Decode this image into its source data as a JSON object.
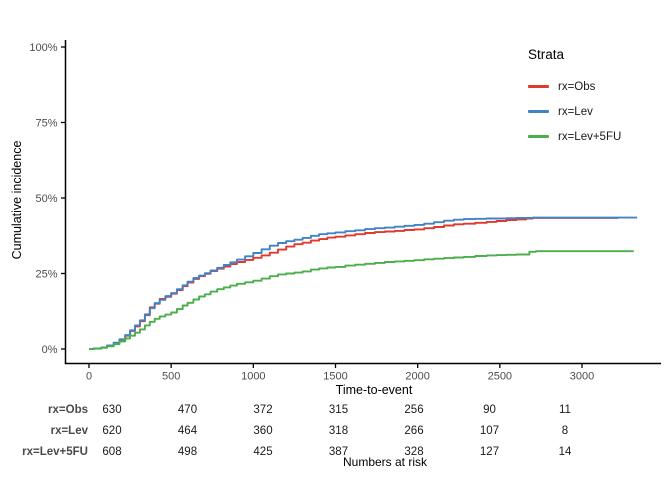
{
  "chart_data": {
    "type": "line",
    "subtype": "cumulative-incidence-step-curves",
    "title": "",
    "xlabel": "Time-to-event",
    "ylabel": "Cumulative incidence",
    "xlim": [
      0,
      3480
    ],
    "ylim": [
      0,
      100
    ],
    "grid": "off",
    "x_ticks": [
      0,
      500,
      1000,
      1500,
      2000,
      2500,
      3000
    ],
    "y_ticks": [
      {
        "value": 0,
        "label": "0%"
      },
      {
        "value": 25,
        "label": "25%"
      },
      {
        "value": 50,
        "label": "50%"
      },
      {
        "value": 75,
        "label": "75%"
      },
      {
        "value": 100,
        "label": "100%"
      }
    ],
    "legend": {
      "title": "Strata",
      "position": "top-right",
      "entries": [
        {
          "label": "rx=Obs",
          "color": "#E2382D"
        },
        {
          "label": "rx=Lev",
          "color": "#4183C4"
        },
        {
          "label": "rx=Lev+5FU",
          "color": "#4CAE4C"
        }
      ]
    },
    "series": [
      {
        "name": "rx=Obs",
        "color": "#E2382D",
        "points": [
          [
            0,
            0
          ],
          [
            30,
            0.2
          ],
          [
            75,
            0.5
          ],
          [
            110,
            1.1
          ],
          [
            150,
            2
          ],
          [
            185,
            3
          ],
          [
            220,
            4.4
          ],
          [
            250,
            6
          ],
          [
            280,
            7.5
          ],
          [
            310,
            9.2
          ],
          [
            340,
            11.2
          ],
          [
            370,
            13.8
          ],
          [
            400,
            15
          ],
          [
            430,
            16.6
          ],
          [
            465,
            17.3
          ],
          [
            500,
            18.3
          ],
          [
            535,
            19.5
          ],
          [
            570,
            20.8
          ],
          [
            600,
            22
          ],
          [
            635,
            23.2
          ],
          [
            670,
            24.1
          ],
          [
            705,
            24.9
          ],
          [
            740,
            25.8
          ],
          [
            780,
            26.6
          ],
          [
            820,
            27.3
          ],
          [
            860,
            28.1
          ],
          [
            900,
            28.8
          ],
          [
            950,
            29.5
          ],
          [
            1000,
            30.2
          ],
          [
            1050,
            31
          ],
          [
            1100,
            31.9
          ],
          [
            1150,
            32.9
          ],
          [
            1200,
            33.9
          ],
          [
            1250,
            34.7
          ],
          [
            1300,
            35.2
          ],
          [
            1350,
            35.9
          ],
          [
            1400,
            36.4
          ],
          [
            1450,
            36.9
          ],
          [
            1500,
            37.2
          ],
          [
            1560,
            37.6
          ],
          [
            1620,
            38
          ],
          [
            1680,
            38.4
          ],
          [
            1740,
            38.7
          ],
          [
            1800,
            38.9
          ],
          [
            1860,
            39.1
          ],
          [
            1920,
            39.4
          ],
          [
            1980,
            39.6
          ],
          [
            2040,
            40
          ],
          [
            2100,
            40.4
          ],
          [
            2160,
            40.9
          ],
          [
            2220,
            41.3
          ],
          [
            2280,
            41.5
          ],
          [
            2350,
            41.8
          ],
          [
            2420,
            42.1
          ],
          [
            2480,
            42.4
          ],
          [
            2540,
            42.7
          ],
          [
            2600,
            42.9
          ],
          [
            2660,
            43.2
          ],
          [
            2700,
            43.4
          ],
          [
            3220,
            43.4
          ]
        ]
      },
      {
        "name": "rx=Lev",
        "color": "#4183C4",
        "points": [
          [
            0,
            0
          ],
          [
            30,
            0.2
          ],
          [
            75,
            0.5
          ],
          [
            110,
            1.2
          ],
          [
            150,
            2.1
          ],
          [
            185,
            3.2
          ],
          [
            220,
            4.6
          ],
          [
            250,
            6.2
          ],
          [
            280,
            7.8
          ],
          [
            310,
            9.5
          ],
          [
            340,
            11.5
          ],
          [
            370,
            13.5
          ],
          [
            400,
            15.2
          ],
          [
            430,
            16.3
          ],
          [
            465,
            17.5
          ],
          [
            500,
            18.5
          ],
          [
            535,
            19.8
          ],
          [
            570,
            21.1
          ],
          [
            600,
            22.3
          ],
          [
            635,
            23.5
          ],
          [
            670,
            24.3
          ],
          [
            705,
            25.1
          ],
          [
            740,
            26
          ],
          [
            780,
            26.9
          ],
          [
            820,
            27.8
          ],
          [
            860,
            28.7
          ],
          [
            900,
            29.6
          ],
          [
            950,
            30.7
          ],
          [
            1000,
            31.8
          ],
          [
            1050,
            33
          ],
          [
            1100,
            34.2
          ],
          [
            1150,
            35.1
          ],
          [
            1200,
            35.7
          ],
          [
            1250,
            36.2
          ],
          [
            1300,
            36.8
          ],
          [
            1350,
            37.5
          ],
          [
            1400,
            38
          ],
          [
            1450,
            38.3
          ],
          [
            1500,
            38.6
          ],
          [
            1560,
            39
          ],
          [
            1620,
            39.3
          ],
          [
            1680,
            39.7
          ],
          [
            1740,
            40
          ],
          [
            1800,
            40.2
          ],
          [
            1860,
            40.5
          ],
          [
            1920,
            40.8
          ],
          [
            1980,
            41.1
          ],
          [
            2040,
            41.5
          ],
          [
            2100,
            42
          ],
          [
            2160,
            42.5
          ],
          [
            2220,
            42.8
          ],
          [
            2280,
            43
          ],
          [
            2350,
            43.1
          ],
          [
            2420,
            43.2
          ],
          [
            2540,
            43.3
          ],
          [
            2600,
            43.4
          ],
          [
            2700,
            43.5
          ],
          [
            3335,
            43.5
          ]
        ]
      },
      {
        "name": "rx=Lev+5FU",
        "color": "#4CAE4C",
        "points": [
          [
            0,
            0
          ],
          [
            30,
            0.1
          ],
          [
            75,
            0.4
          ],
          [
            110,
            0.9
          ],
          [
            150,
            1.6
          ],
          [
            185,
            2.5
          ],
          [
            220,
            3.5
          ],
          [
            250,
            4.4
          ],
          [
            280,
            5.4
          ],
          [
            310,
            6.5
          ],
          [
            340,
            7.8
          ],
          [
            370,
            9
          ],
          [
            400,
            10
          ],
          [
            430,
            10.8
          ],
          [
            465,
            11.4
          ],
          [
            500,
            12.1
          ],
          [
            535,
            13.2
          ],
          [
            570,
            14.4
          ],
          [
            600,
            15.3
          ],
          [
            635,
            16.4
          ],
          [
            670,
            17.4
          ],
          [
            705,
            18.1
          ],
          [
            740,
            19
          ],
          [
            780,
            19.8
          ],
          [
            820,
            20.4
          ],
          [
            860,
            21
          ],
          [
            900,
            21.6
          ],
          [
            950,
            22.1
          ],
          [
            1000,
            22.6
          ],
          [
            1050,
            23.3
          ],
          [
            1100,
            24.1
          ],
          [
            1150,
            24.7
          ],
          [
            1200,
            25
          ],
          [
            1250,
            25.3
          ],
          [
            1300,
            25.7
          ],
          [
            1350,
            26.3
          ],
          [
            1400,
            26.7
          ],
          [
            1450,
            27
          ],
          [
            1500,
            27.2
          ],
          [
            1560,
            27.6
          ],
          [
            1620,
            27.9
          ],
          [
            1680,
            28.2
          ],
          [
            1740,
            28.5
          ],
          [
            1800,
            28.8
          ],
          [
            1860,
            29
          ],
          [
            1920,
            29.2
          ],
          [
            1980,
            29.4
          ],
          [
            2040,
            29.7
          ],
          [
            2100,
            29.9
          ],
          [
            2160,
            30.1
          ],
          [
            2220,
            30.3
          ],
          [
            2280,
            30.5
          ],
          [
            2350,
            30.8
          ],
          [
            2420,
            31
          ],
          [
            2480,
            31.1
          ],
          [
            2540,
            31.2
          ],
          [
            2600,
            31.3
          ],
          [
            2680,
            32.2
          ],
          [
            2720,
            32.4
          ],
          [
            3315,
            32.4
          ]
        ]
      }
    ]
  },
  "risk_table": {
    "caption": "Numbers at risk",
    "times": [
      0,
      500,
      1000,
      1500,
      2000,
      2500,
      3000
    ],
    "rows": [
      {
        "label": "rx=Obs",
        "values": [
          630,
          470,
          372,
          315,
          256,
          90,
          11
        ]
      },
      {
        "label": "rx=Lev",
        "values": [
          620,
          464,
          360,
          318,
          266,
          107,
          8
        ]
      },
      {
        "label": "rx=Lev+5FU",
        "values": [
          608,
          498,
          425,
          387,
          328,
          127,
          14
        ]
      }
    ]
  },
  "style": {
    "axis_color": "#000000",
    "tick_label_color": "#4d4d4d",
    "background": "#ffffff"
  }
}
